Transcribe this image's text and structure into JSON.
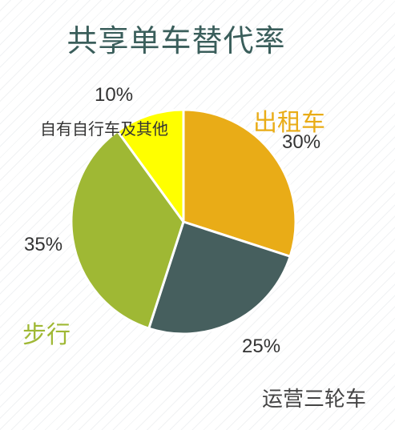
{
  "chart_data": {
    "type": "pie",
    "title": "共享单车替代率",
    "start_angle_deg": 0,
    "direction": "clockwise",
    "slices": [
      {
        "label": "出租车",
        "value": 30,
        "value_label": "30%",
        "color": "#e9ac17",
        "label_color": "#e9ac17"
      },
      {
        "label": "运营三轮车",
        "value": 25,
        "value_label": "25%",
        "color": "#465f5e",
        "label_color": "#444444"
      },
      {
        "label": "步行",
        "value": 35,
        "value_label": "35%",
        "color": "#9fb834",
        "label_color": "#9fb834"
      },
      {
        "label": "自有自行车及其他",
        "value": 10,
        "value_label": "10%",
        "color": "#ffff00",
        "label_color": "#333333"
      }
    ]
  }
}
